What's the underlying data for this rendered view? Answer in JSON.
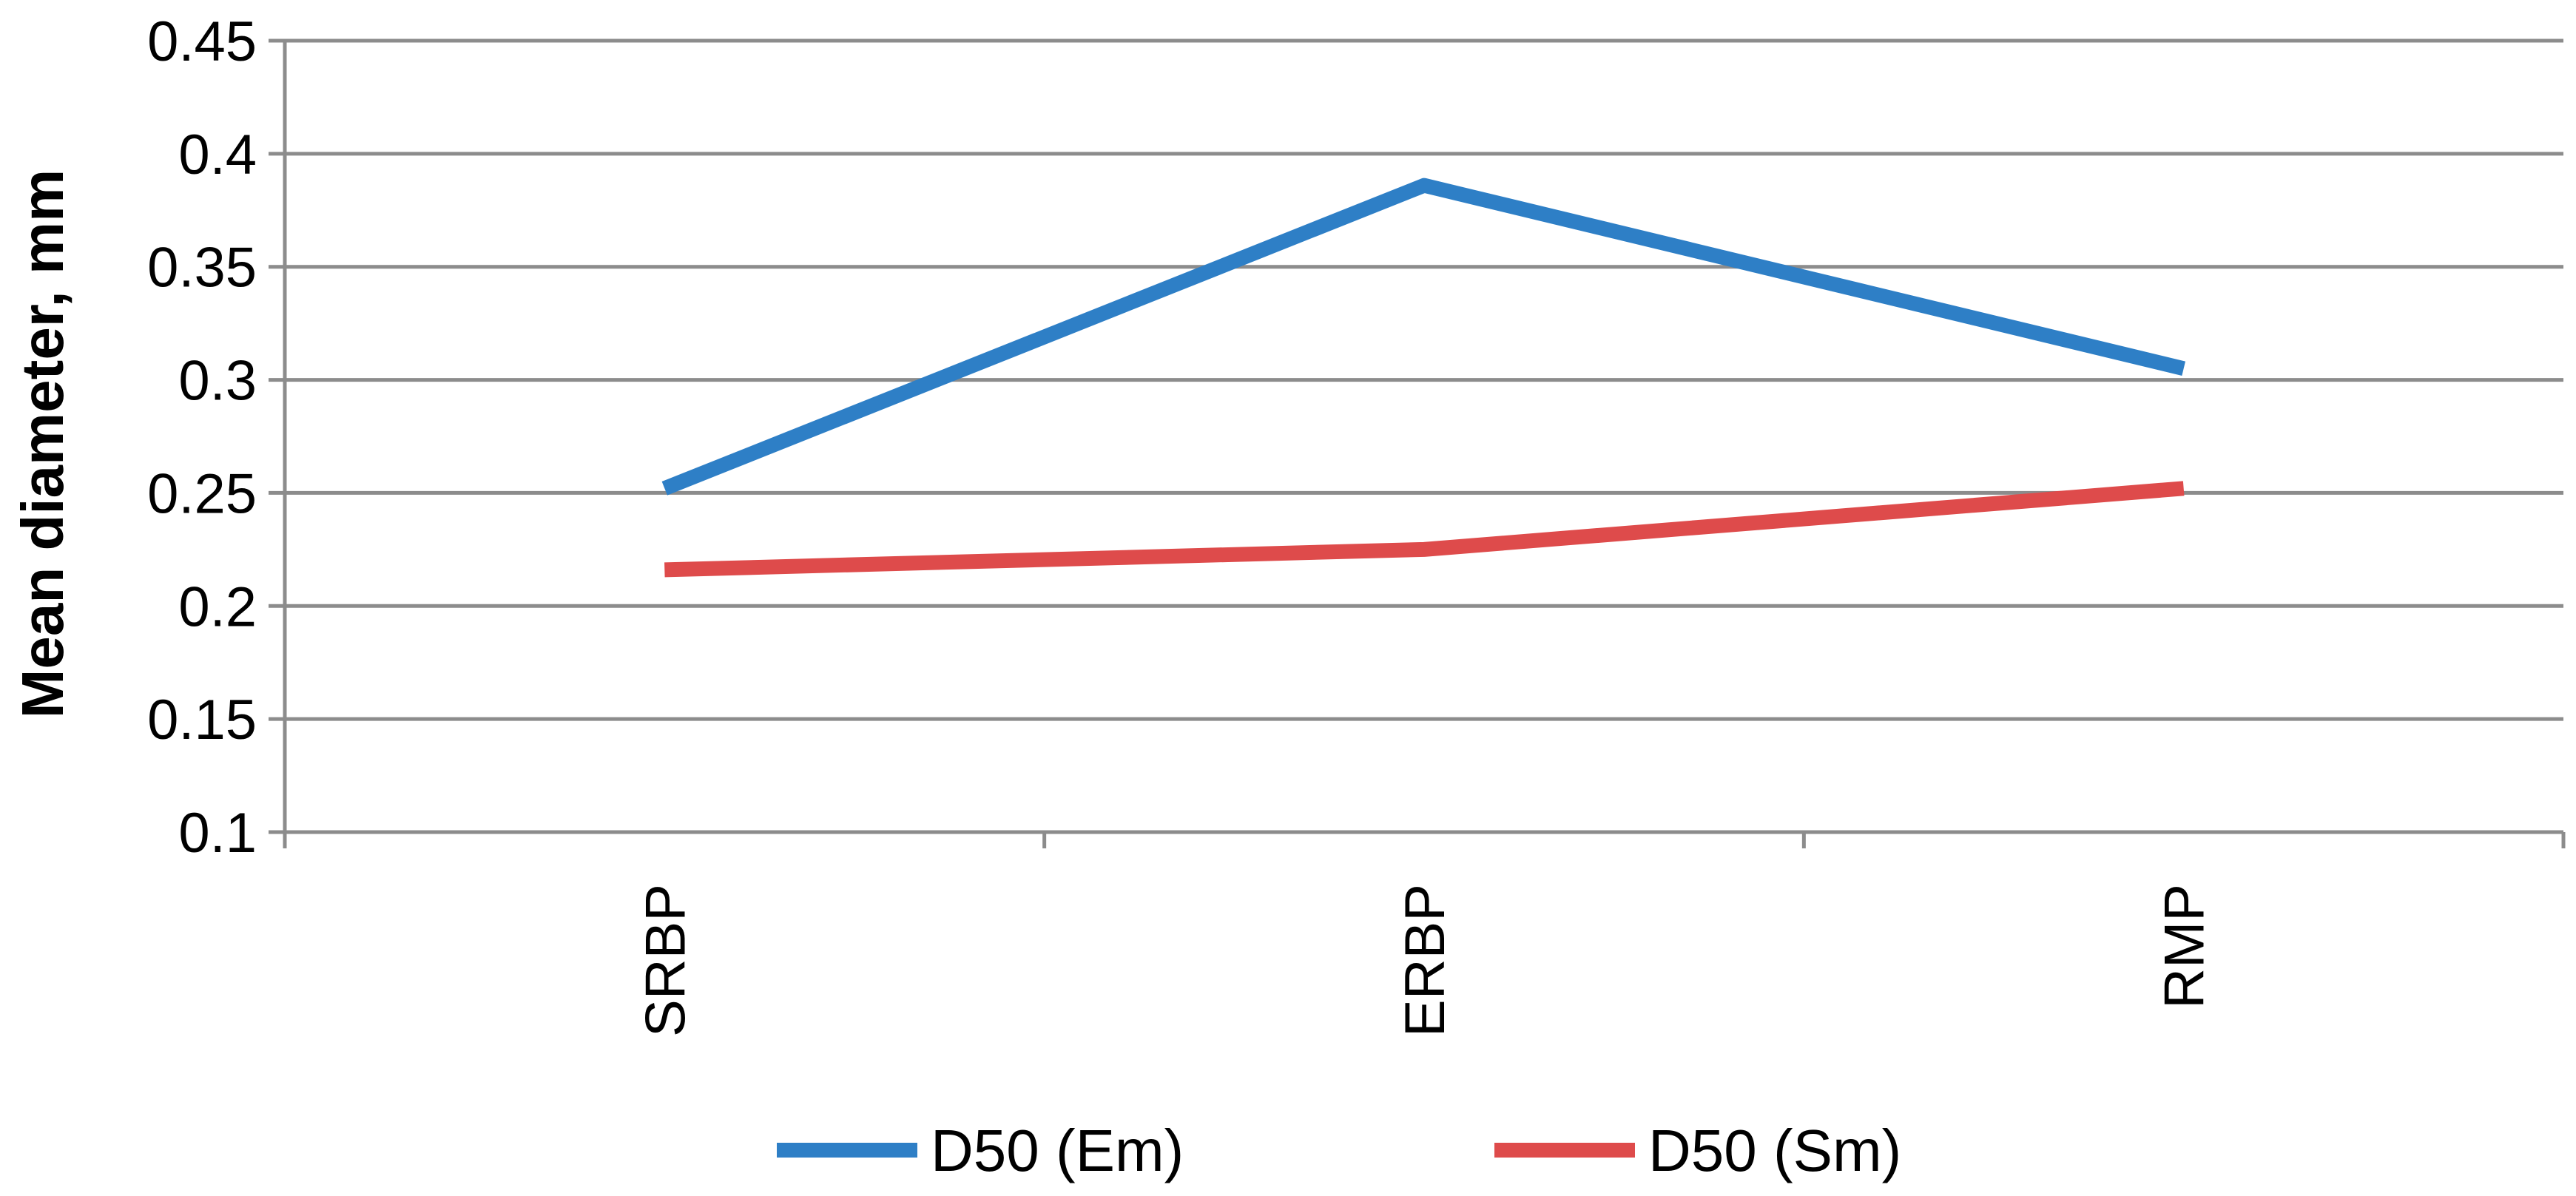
{
  "chart_data": {
    "type": "line",
    "title": "",
    "xlabel": "",
    "ylabel": "Mean diameter, mm",
    "categories": [
      "SRBP",
      "ERBP",
      "RMP"
    ],
    "ylim": [
      0.1,
      0.45
    ],
    "yticks": [
      "0.1",
      "0.15",
      "0.2",
      "0.25",
      "0.3",
      "0.35",
      "0.4",
      "0.45"
    ],
    "grid": true,
    "legend_position": "bottom",
    "series": [
      {
        "name": "D50 (Em)",
        "color": "#2e7fc6",
        "values": [
          0.252,
          0.386,
          0.305
        ]
      },
      {
        "name": "D50 (Sm)",
        "color": "#de4b4b",
        "values": [
          0.216,
          0.225,
          0.252
        ]
      }
    ]
  }
}
